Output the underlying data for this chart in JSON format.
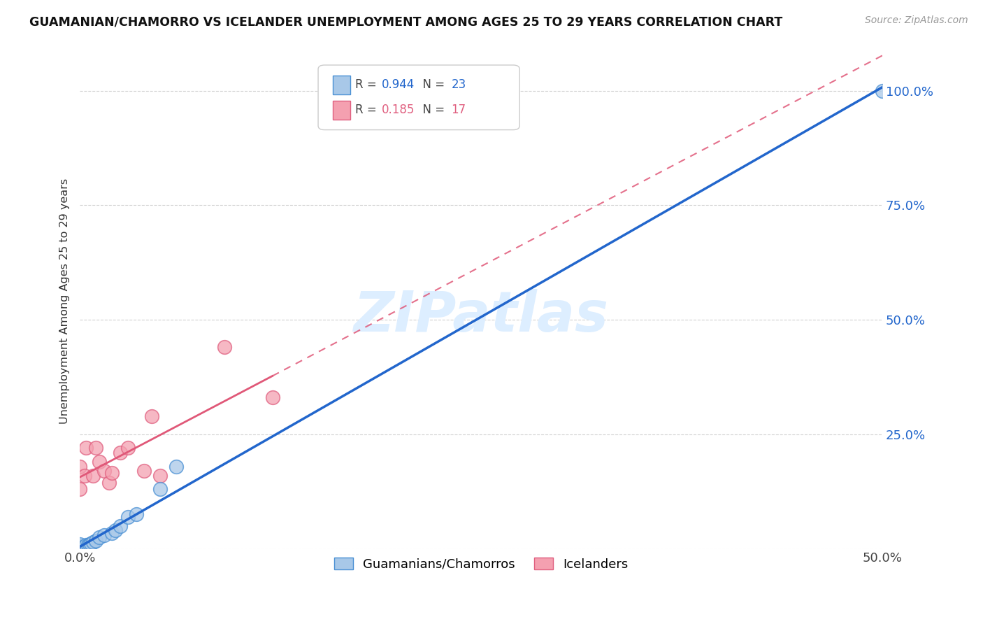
{
  "title": "GUAMANIAN/CHAMORRO VS ICELANDER UNEMPLOYMENT AMONG AGES 25 TO 29 YEARS CORRELATION CHART",
  "source": "Source: ZipAtlas.com",
  "ylabel": "Unemployment Among Ages 25 to 29 years",
  "xlim": [
    0.0,
    0.5
  ],
  "ylim": [
    0.0,
    1.08
  ],
  "legend_r_blue": "0.944",
  "legend_n_blue": "23",
  "legend_r_pink": "0.185",
  "legend_n_pink": "17",
  "legend_labels": [
    "Guamanians/Chamorros",
    "Icelanders"
  ],
  "blue_scatter_color": "#a8c8e8",
  "blue_edge_color": "#4a90d4",
  "pink_scatter_color": "#f4a0b0",
  "pink_edge_color": "#e06080",
  "blue_line_color": "#2266cc",
  "pink_line_color": "#e05878",
  "watermark_color": "#ddeeff",
  "background_color": "#ffffff",
  "guamanian_x": [
    0.0,
    0.0,
    0.0,
    0.0,
    0.0,
    0.002,
    0.003,
    0.004,
    0.005,
    0.006,
    0.007,
    0.008,
    0.01,
    0.012,
    0.015,
    0.02,
    0.022,
    0.025,
    0.03,
    0.035,
    0.05,
    0.06,
    0.5
  ],
  "guamanian_y": [
    0.0,
    0.002,
    0.004,
    0.006,
    0.01,
    0.003,
    0.005,
    0.008,
    0.008,
    0.01,
    0.012,
    0.015,
    0.018,
    0.025,
    0.03,
    0.035,
    0.04,
    0.05,
    0.07,
    0.075,
    0.13,
    0.18,
    1.0
  ],
  "icelander_x": [
    0.0,
    0.0,
    0.003,
    0.004,
    0.008,
    0.01,
    0.012,
    0.015,
    0.018,
    0.02,
    0.025,
    0.03,
    0.04,
    0.045,
    0.05,
    0.09,
    0.12
  ],
  "icelander_y": [
    0.13,
    0.18,
    0.16,
    0.22,
    0.16,
    0.22,
    0.19,
    0.17,
    0.145,
    0.165,
    0.21,
    0.22,
    0.17,
    0.29,
    0.16,
    0.44,
    0.33
  ],
  "pink_line_intercept": 0.145,
  "pink_line_slope": 1.55,
  "blue_line_intercept": 0.0,
  "blue_line_slope": 2.0
}
